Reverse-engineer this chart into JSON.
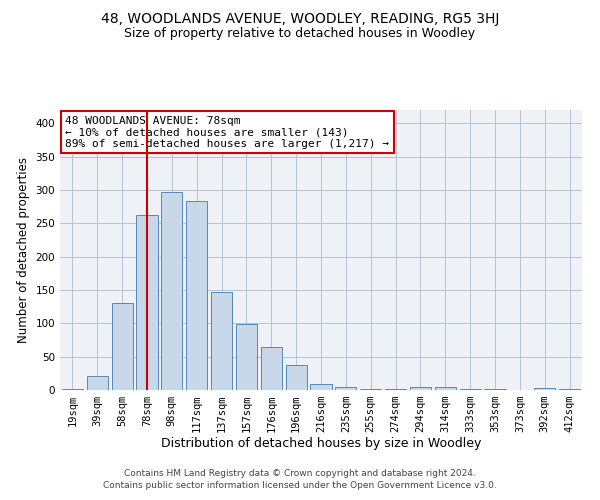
{
  "title1": "48, WOODLANDS AVENUE, WOODLEY, READING, RG5 3HJ",
  "title2": "Size of property relative to detached houses in Woodley",
  "xlabel": "Distribution of detached houses by size in Woodley",
  "ylabel": "Number of detached properties",
  "categories": [
    "19sqm",
    "39sqm",
    "58sqm",
    "78sqm",
    "98sqm",
    "117sqm",
    "137sqm",
    "157sqm",
    "176sqm",
    "196sqm",
    "216sqm",
    "235sqm",
    "255sqm",
    "274sqm",
    "294sqm",
    "314sqm",
    "333sqm",
    "353sqm",
    "373sqm",
    "392sqm",
    "412sqm"
  ],
  "values": [
    2,
    21,
    131,
    263,
    297,
    284,
    147,
    99,
    65,
    37,
    9,
    5,
    1,
    1,
    4,
    4,
    1,
    1,
    0,
    3,
    1
  ],
  "bar_color": "#c8d8e8",
  "bar_edge_color": "#5588bb",
  "vline_x_index": 3,
  "vline_color": "#cc0000",
  "annotation_text": "48 WOODLANDS AVENUE: 78sqm\n← 10% of detached houses are smaller (143)\n89% of semi-detached houses are larger (1,217) →",
  "annotation_box_color": "#ffffff",
  "annotation_box_edge_color": "#cc0000",
  "ylim": [
    0,
    420
  ],
  "yticks": [
    0,
    50,
    100,
    150,
    200,
    250,
    300,
    350,
    400
  ],
  "grid_color": "#aabbcc",
  "background_color": "#eef2f7",
  "footer_text": "Contains HM Land Registry data © Crown copyright and database right 2024.\nContains public sector information licensed under the Open Government Licence v3.0.",
  "title1_fontsize": 10,
  "title2_fontsize": 9,
  "xlabel_fontsize": 9,
  "ylabel_fontsize": 8.5,
  "tick_fontsize": 7.5,
  "annotation_fontsize": 8,
  "footer_fontsize": 6.5
}
